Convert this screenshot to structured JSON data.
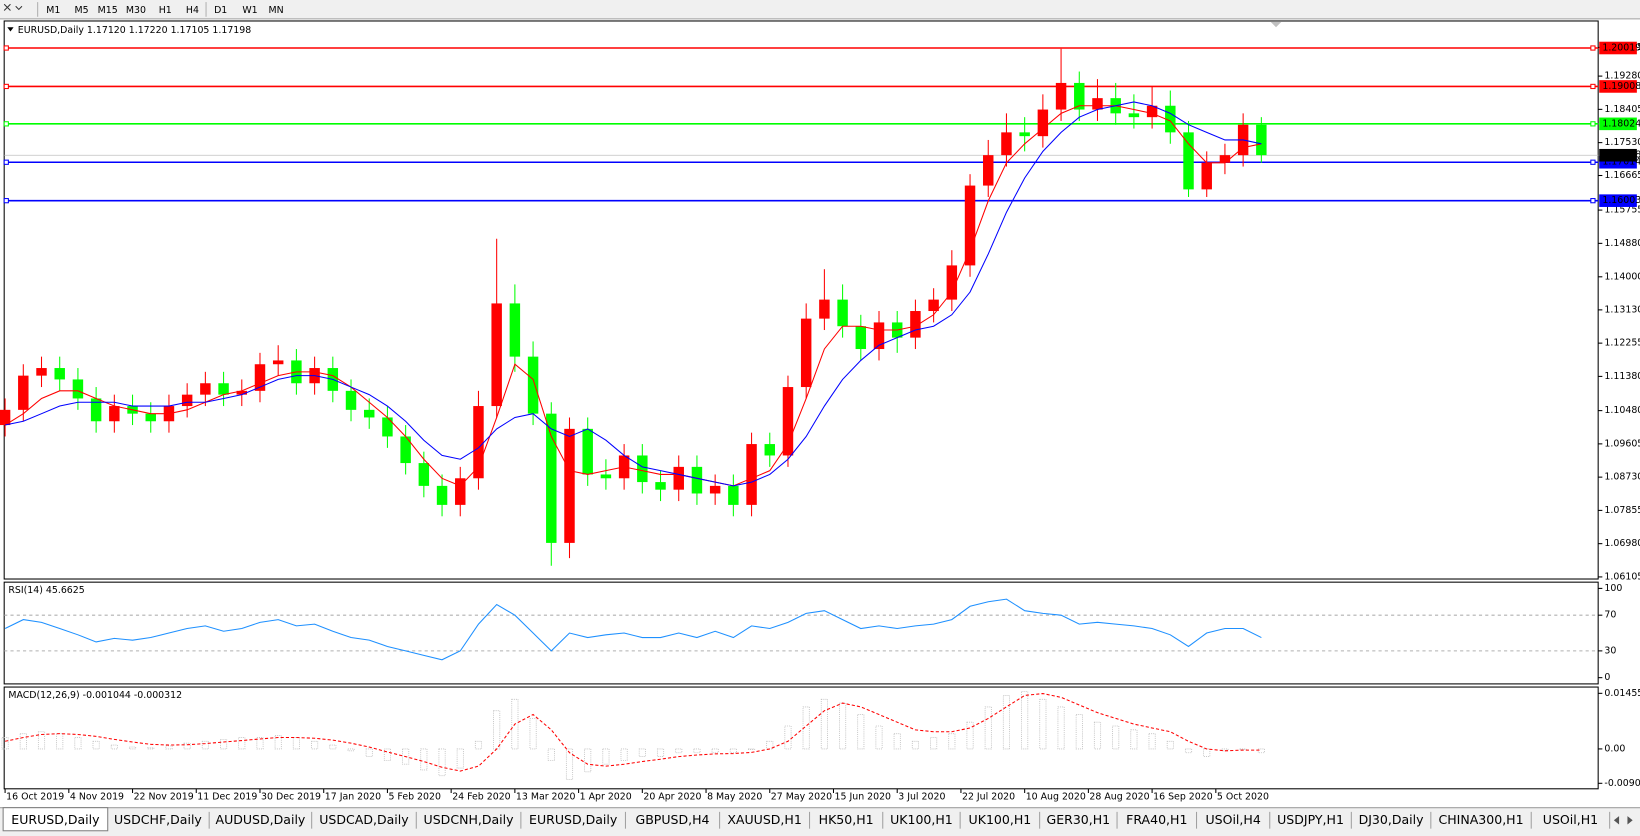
{
  "toolbar": {
    "timeframes": [
      "M1",
      "M5",
      "M15",
      "M30",
      "H1",
      "H4",
      "D1",
      "W1",
      "MN"
    ]
  },
  "tabs": [
    "EURUSD,Daily",
    "USDCHF,Daily",
    "AUDUSD,Daily",
    "USDCAD,Daily",
    "USDCNH,Daily",
    "EURUSD,Daily",
    "GBPUSD,H4",
    "XAUUSD,H1",
    "HK50,H1",
    "UK100,H1",
    "UK100,H1",
    "GER30,H1",
    "FRA40,H1",
    "USOil,H4",
    "USDJPY,H1",
    "DJ30,Daily",
    "CHINA300,H1",
    "USOil,H1"
  ],
  "chart_data": [
    {
      "type": "candlestick",
      "title": "EURUSD,Daily 1.17120 1.17220 1.17105 1.17198",
      "up_color": "#ff0000",
      "down_color": "#00ff00",
      "x": [
        0,
        4,
        8,
        12,
        16,
        20,
        24,
        28,
        32,
        36,
        40,
        44,
        48,
        52,
        56,
        60,
        64,
        68,
        72,
        76,
        80,
        84,
        88,
        92,
        96,
        100,
        104,
        108,
        112,
        116,
        120,
        124,
        128,
        132,
        136,
        140,
        144,
        148,
        152,
        156,
        160,
        164,
        168,
        172,
        176,
        180,
        184,
        188,
        192,
        196,
        200,
        204,
        208,
        212,
        216,
        220,
        224,
        228,
        232,
        236,
        240,
        244,
        248,
        252,
        256,
        260,
        264,
        268,
        272,
        276
      ],
      "xlim": [
        -0.2,
        350
      ],
      "xticks": [
        {
          "value": 0,
          "label": "16 Oct 2019"
        },
        {
          "value": 14,
          "label": "4 Nov 2019"
        },
        {
          "value": 28,
          "label": "22 Nov 2019"
        },
        {
          "value": 42,
          "label": "11 Dec 2019"
        },
        {
          "value": 56,
          "label": "30 Dec 2019"
        },
        {
          "value": 70,
          "label": "17 Jan 2020"
        },
        {
          "value": 84,
          "label": "5 Feb 2020"
        },
        {
          "value": 98,
          "label": "24 Feb 2020"
        },
        {
          "value": 112,
          "label": "13 Mar 2020"
        },
        {
          "value": 126,
          "label": "1 Apr 2020"
        },
        {
          "value": 140,
          "label": "20 Apr 2020"
        },
        {
          "value": 154,
          "label": "8 May 2020"
        },
        {
          "value": 168,
          "label": "27 May 2020"
        },
        {
          "value": 182,
          "label": "15 Jun 2020"
        },
        {
          "value": 196,
          "label": "3 Jul 2020"
        },
        {
          "value": 210,
          "label": "22 Jul 2020"
        },
        {
          "value": 224,
          "label": "10 Aug 2020"
        },
        {
          "value": 238,
          "label": "28 Aug 2020"
        },
        {
          "value": 252,
          "label": "16 Sep 2020"
        },
        {
          "value": 266,
          "label": "5 Oct 2020"
        }
      ],
      "ylim": [
        1.0605,
        1.2073
      ],
      "yticks": [
        1.20035,
        {
          "value": 1.1928,
          "label": "1.19280"
        },
        1.18405,
        {
          "value": 1.1753,
          "label": "1.17530"
        },
        1.16665,
        1.15755,
        {
          "value": 1.1488,
          "label": "1.14880"
        },
        {
          "value": 1.14,
          "label": "1.14000"
        },
        {
          "value": 1.1313,
          "label": "1.13130"
        },
        1.12255,
        {
          "value": 1.1138,
          "label": "1.11380"
        },
        {
          "value": 1.1048,
          "label": "1.10480"
        },
        1.09605,
        {
          "value": 1.0873,
          "label": "1.08730"
        },
        1.07855,
        {
          "value": 1.0698,
          "label": "1.06980"
        },
        1.06105
      ],
      "open": [
        1.101,
        1.105,
        1.114,
        1.116,
        1.113,
        1.108,
        1.102,
        1.106,
        1.104,
        1.102,
        1.106,
        1.109,
        1.112,
        1.109,
        1.11,
        1.117,
        1.118,
        1.112,
        1.116,
        1.11,
        1.105,
        1.103,
        1.098,
        1.091,
        1.085,
        1.08,
        1.087,
        1.106,
        1.133,
        1.119,
        1.104,
        1.07,
        1.1,
        1.088,
        1.087,
        1.093,
        1.086,
        1.084,
        1.09,
        1.083,
        1.085,
        1.08,
        1.096,
        1.093,
        1.111,
        1.129,
        1.134,
        1.127,
        1.121,
        1.128,
        1.124,
        1.131,
        1.134,
        1.143,
        1.164,
        1.172,
        1.178,
        1.177,
        1.184,
        1.191,
        1.184,
        1.187,
        1.183,
        1.182,
        1.185,
        1.178,
        1.163,
        1.17,
        1.172,
        1.18
      ],
      "high": [
        1.108,
        1.117,
        1.119,
        1.119,
        1.116,
        1.111,
        1.109,
        1.109,
        1.107,
        1.109,
        1.112,
        1.115,
        1.115,
        1.113,
        1.12,
        1.122,
        1.121,
        1.119,
        1.119,
        1.113,
        1.108,
        1.106,
        1.101,
        1.094,
        1.088,
        1.09,
        1.11,
        1.15,
        1.138,
        1.123,
        1.107,
        1.103,
        1.103,
        1.092,
        1.096,
        1.096,
        1.089,
        1.093,
        1.093,
        1.088,
        1.088,
        1.099,
        1.099,
        1.114,
        1.133,
        1.142,
        1.138,
        1.13,
        1.131,
        1.131,
        1.134,
        1.137,
        1.147,
        1.167,
        1.176,
        1.183,
        1.182,
        1.188,
        1.2,
        1.194,
        1.192,
        1.191,
        1.188,
        1.19,
        1.189,
        1.181,
        1.173,
        1.175,
        1.183,
        1.182
      ],
      "low": [
        1.098,
        1.102,
        1.111,
        1.11,
        1.105,
        1.099,
        1.099,
        1.101,
        1.099,
        1.099,
        1.103,
        1.106,
        1.106,
        1.106,
        1.107,
        1.114,
        1.109,
        1.109,
        1.107,
        1.102,
        1.1,
        1.095,
        1.088,
        1.082,
        1.077,
        1.077,
        1.084,
        1.103,
        1.115,
        1.101,
        1.064,
        1.066,
        1.085,
        1.084,
        1.084,
        1.083,
        1.081,
        1.081,
        1.08,
        1.08,
        1.077,
        1.077,
        1.09,
        1.09,
        1.108,
        1.126,
        1.124,
        1.118,
        1.118,
        1.12,
        1.121,
        1.128,
        1.131,
        1.14,
        1.161,
        1.169,
        1.173,
        1.174,
        1.181,
        1.181,
        1.181,
        1.18,
        1.179,
        1.179,
        1.175,
        1.161,
        1.161,
        1.167,
        1.169,
        1.17
      ],
      "close": [
        1.105,
        1.114,
        1.116,
        1.113,
        1.108,
        1.102,
        1.106,
        1.104,
        1.102,
        1.106,
        1.109,
        1.112,
        1.109,
        1.11,
        1.117,
        1.118,
        1.112,
        1.116,
        1.11,
        1.105,
        1.103,
        1.098,
        1.091,
        1.085,
        1.08,
        1.087,
        1.106,
        1.133,
        1.119,
        1.104,
        1.07,
        1.1,
        1.088,
        1.087,
        1.093,
        1.086,
        1.084,
        1.09,
        1.083,
        1.085,
        1.08,
        1.096,
        1.093,
        1.111,
        1.129,
        1.134,
        1.127,
        1.121,
        1.128,
        1.124,
        1.131,
        1.134,
        1.143,
        1.164,
        1.172,
        1.178,
        1.177,
        1.184,
        1.191,
        1.184,
        1.187,
        1.183,
        1.182,
        1.185,
        1.178,
        1.163,
        1.17,
        1.172,
        1.18,
        1.172
      ],
      "series": [
        {
          "color": "#ff0000",
          "values": [
            1.101,
            1.104,
            1.108,
            1.11,
            1.11,
            1.108,
            1.106,
            1.105,
            1.104,
            1.104,
            1.105,
            1.107,
            1.109,
            1.11,
            1.112,
            1.114,
            1.115,
            1.115,
            1.114,
            1.111,
            1.107,
            1.103,
            1.098,
            1.092,
            1.087,
            1.085,
            1.09,
            1.103,
            1.117,
            1.113,
            1.098,
            1.089,
            1.088,
            1.089,
            1.09,
            1.089,
            1.088,
            1.088,
            1.087,
            1.086,
            1.085,
            1.087,
            1.089,
            1.096,
            1.108,
            1.121,
            1.127,
            1.127,
            1.126,
            1.126,
            1.127,
            1.13,
            1.136,
            1.147,
            1.16,
            1.17,
            1.175,
            1.179,
            1.183,
            1.185,
            1.185,
            1.185,
            1.184,
            1.183,
            1.181,
            1.175,
            1.17,
            1.17,
            1.174,
            1.175
          ]
        },
        {
          "color": "#0000ff",
          "values": [
            1.101,
            1.102,
            1.104,
            1.106,
            1.107,
            1.107,
            1.107,
            1.106,
            1.106,
            1.106,
            1.107,
            1.107,
            1.108,
            1.109,
            1.111,
            1.113,
            1.114,
            1.114,
            1.113,
            1.111,
            1.109,
            1.106,
            1.102,
            1.097,
            1.093,
            1.092,
            1.095,
            1.1,
            1.103,
            1.104,
            1.1,
            1.098,
            1.1,
            1.097,
            1.093,
            1.09,
            1.089,
            1.088,
            1.087,
            1.086,
            1.085,
            1.086,
            1.088,
            1.092,
            1.098,
            1.106,
            1.113,
            1.118,
            1.122,
            1.124,
            1.126,
            1.127,
            1.13,
            1.136,
            1.146,
            1.157,
            1.166,
            1.173,
            1.178,
            1.182,
            1.184,
            1.185,
            1.186,
            1.185,
            1.183,
            1.18,
            1.178,
            1.176,
            1.176,
            1.175
          ]
        }
      ],
      "hlines": [
        {
          "value": 1.20019,
          "color": "#ff0000"
        },
        {
          "value": 1.19008,
          "color": "#ff0000"
        },
        {
          "value": 1.18024,
          "color": "#00ff00"
        },
        {
          "value": 1.17014,
          "color": "#0000ff"
        },
        {
          "value": 1.16003,
          "color": "#0000ff"
        }
      ],
      "current_price": 1.17198
    },
    {
      "type": "line",
      "title": "RSI(14) 45.6625",
      "color": "#1e90ff",
      "ylim": [
        -7,
        107
      ],
      "yticks": [
        0,
        30,
        70,
        100
      ],
      "levels": [
        30,
        70
      ],
      "values": [
        55,
        65,
        62,
        55,
        48,
        40,
        44,
        42,
        45,
        50,
        55,
        58,
        52,
        55,
        62,
        65,
        58,
        60,
        52,
        45,
        42,
        35,
        30,
        25,
        20,
        30,
        60,
        82,
        70,
        50,
        30,
        50,
        45,
        48,
        50,
        45,
        45,
        50,
        45,
        52,
        45,
        58,
        55,
        62,
        72,
        75,
        65,
        55,
        58,
        55,
        58,
        60,
        65,
        80,
        85,
        88,
        75,
        72,
        70,
        60,
        62,
        60,
        58,
        55,
        48,
        35,
        50,
        55,
        55,
        45
      ]
    },
    {
      "type": "macd",
      "title": "MACD(12,26,9) -0.001044 -0.000312",
      "ylim": [
        -0.01044,
        0.0162
      ],
      "yticks": [
        0.014556,
        {
          "value": 0,
          "label": "0.00"
        },
        -0.009001
      ],
      "series": [
        {
          "color": "#c0c0c0",
          "values": [
            0.003,
            0.004,
            0.0045,
            0.004,
            0.003,
            0.002,
            0.001,
            0.0005,
            0.0003,
            0.0008,
            0.0015,
            0.002,
            0.0025,
            0.003,
            0.003,
            0.0035,
            0.003,
            0.002,
            0.001,
            -0.0005,
            -0.002,
            -0.003,
            -0.004,
            -0.0055,
            -0.007,
            -0.005,
            0.002,
            0.01,
            0.013,
            0.008,
            -0.003,
            -0.008,
            -0.006,
            -0.004,
            -0.003,
            -0.002,
            -0.002,
            -0.001,
            -0.001,
            -0.001,
            -0.001,
            0.0,
            0.002,
            0.006,
            0.011,
            0.013,
            0.012,
            0.009,
            0.006,
            0.004,
            0.002,
            0.003,
            0.004,
            0.007,
            0.011,
            0.014,
            0.015,
            0.013,
            0.011,
            0.009,
            0.007,
            0.006,
            0.005,
            0.004,
            0.002,
            -0.001,
            -0.002,
            -0.0005,
            0.0,
            -0.001
          ]
        },
        {
          "color": "#ff0000",
          "values": [
            0.002,
            0.003,
            0.0038,
            0.004,
            0.0038,
            0.0033,
            0.0025,
            0.0018,
            0.0012,
            0.001,
            0.0011,
            0.0014,
            0.0018,
            0.0022,
            0.0026,
            0.003,
            0.003,
            0.0028,
            0.0023,
            0.0015,
            0.0005,
            -0.0008,
            -0.002,
            -0.0033,
            -0.0048,
            -0.0058,
            -0.0045,
            0.0,
            0.0065,
            0.009,
            0.005,
            -0.001,
            -0.004,
            -0.0045,
            -0.004,
            -0.0033,
            -0.0027,
            -0.002,
            -0.0016,
            -0.0013,
            -0.0012,
            -0.0009,
            0.0,
            0.002,
            0.006,
            0.01,
            0.012,
            0.011,
            0.009,
            0.007,
            0.005,
            0.0045,
            0.0045,
            0.0055,
            0.008,
            0.011,
            0.014,
            0.0145,
            0.0135,
            0.0115,
            0.0095,
            0.008,
            0.0065,
            0.0055,
            0.0045,
            0.002,
            0.0,
            -0.0005,
            -0.0003,
            -0.0003
          ]
        }
      ]
    }
  ]
}
